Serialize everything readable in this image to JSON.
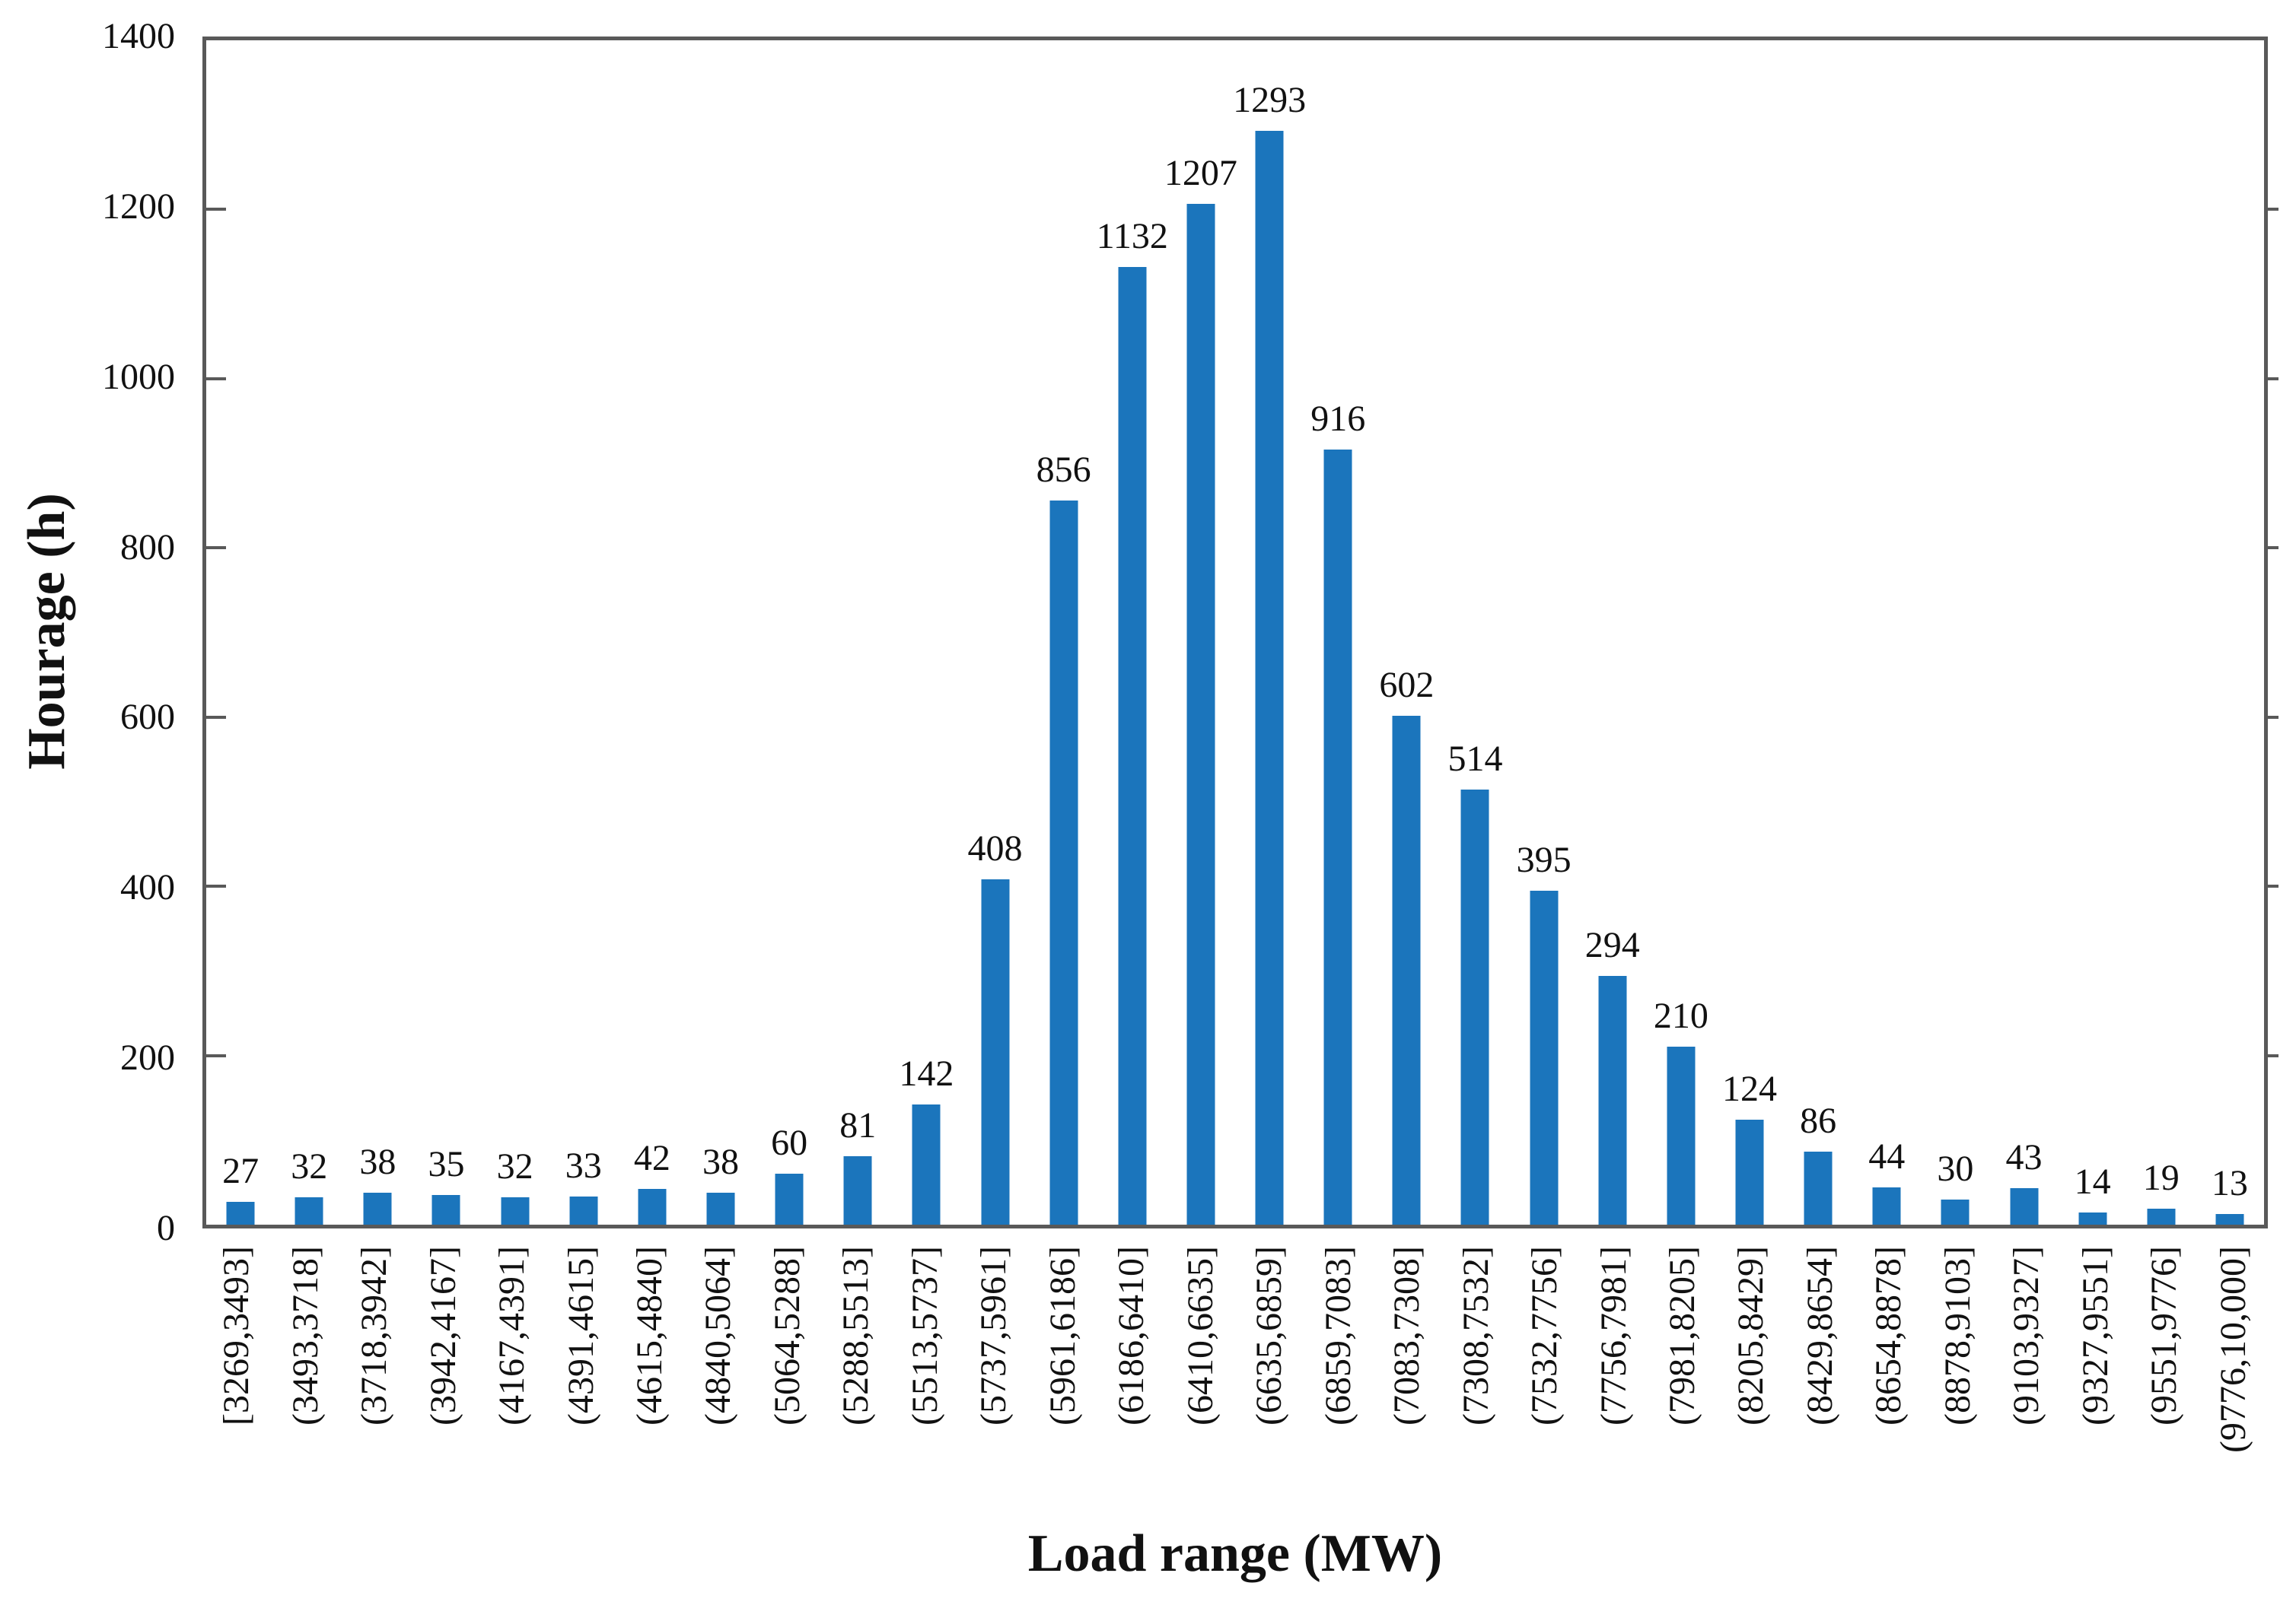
{
  "chart_data": {
    "type": "bar",
    "title": "",
    "xlabel": "Load range (MW)",
    "ylabel": "Hourage (h)",
    "categories": [
      "[3269,3493]",
      "(3493,3718]",
      "(3718,3942]",
      "(3942,4167]",
      "(4167,4391]",
      "(4391,4615]",
      "(4615,4840]",
      "(4840,5064]",
      "(5064,5288]",
      "(5288,5513]",
      "(5513,5737]",
      "(5737,5961]",
      "(5961,6186]",
      "(6186,6410]",
      "(6410,6635]",
      "(6635,6859]",
      "(6859,7083]",
      "(7083,7308]",
      "(7308,7532]",
      "(7532,7756]",
      "(7756,7981]",
      "(7981,8205]",
      "(8205,8429]",
      "(8429,8654]",
      "(8654,8878]",
      "(8878,9103]",
      "(9103,9327]",
      "(9327,9551]",
      "(9551,9776]",
      "(9776,10,000]"
    ],
    "values": [
      27,
      32,
      38,
      35,
      32,
      33,
      42,
      38,
      60,
      81,
      142,
      408,
      856,
      1132,
      1207,
      1293,
      916,
      602,
      514,
      395,
      294,
      210,
      124,
      86,
      44,
      30,
      43,
      14,
      19,
      13
    ],
    "data_labels": true,
    "y_ticks": [
      0,
      200,
      400,
      600,
      800,
      1000,
      1200,
      1400
    ],
    "ylim": [
      0,
      1400
    ],
    "grid": false,
    "legend": "none",
    "bar_color": "#1b75bc",
    "axis_color": "#595959",
    "text_color": "#111111"
  }
}
